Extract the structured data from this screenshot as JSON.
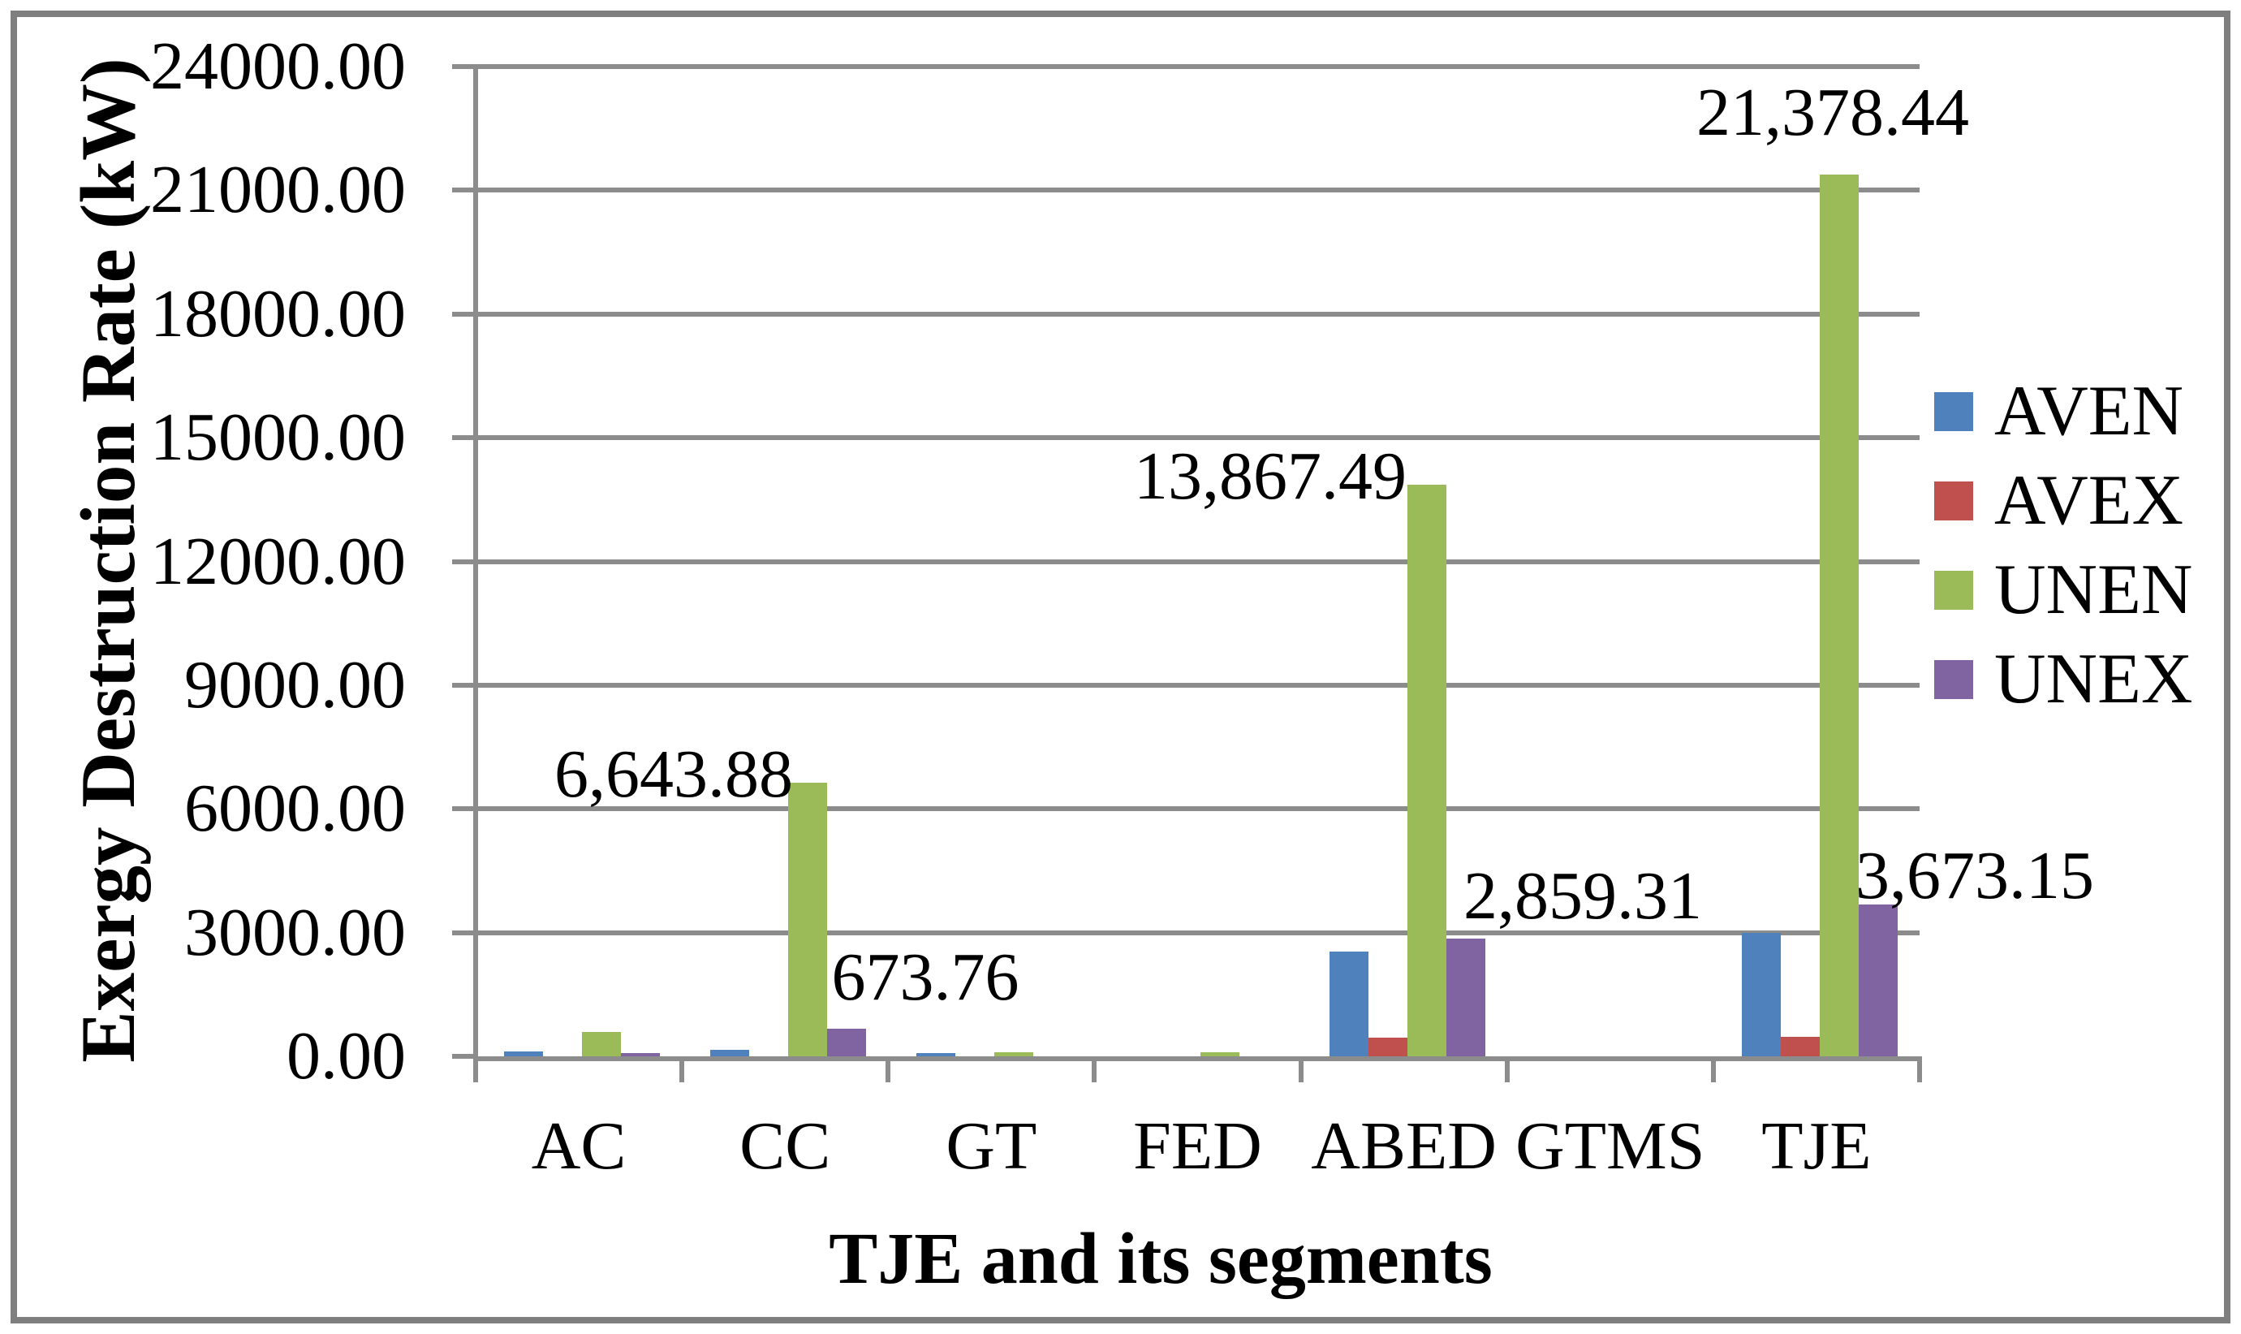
{
  "chart_data": {
    "type": "bar",
    "title": "",
    "xlabel": "TJE and its segments",
    "ylabel": "Exergy Destruction Rate (kW)",
    "categories": [
      "AC",
      "CC",
      "GT",
      "FED",
      "ABED",
      "GTMS",
      "TJE"
    ],
    "series": [
      {
        "name": "AVEN",
        "color": "#4F81BD",
        "values": [
          110,
          160,
          75,
          0,
          2530,
          0,
          3000
        ]
      },
      {
        "name": "AVEX",
        "color": "#C0504D",
        "values": [
          0,
          0,
          0,
          0,
          450,
          0,
          480
        ]
      },
      {
        "name": "UNEN",
        "color": "#9BBB59",
        "values": [
          590,
          6643.88,
          100,
          100,
          13867.49,
          0,
          21378.44
        ]
      },
      {
        "name": "UNEX",
        "color": "#8064A2",
        "values": [
          80,
          673.76,
          0,
          0,
          2859.31,
          0,
          3673.15
        ]
      }
    ],
    "ylim": [
      0,
      24000
    ],
    "ytick_step": 3000,
    "ytick_labels": [
      "0.00",
      "3000.00",
      "6000.00",
      "9000.00",
      "12000.00",
      "15000.00",
      "18000.00",
      "21000.00",
      "24000.00"
    ],
    "grid": true,
    "legend_position": "right",
    "data_labels": [
      {
        "category": "CC",
        "series": "UNEN",
        "text": "6,643.88"
      },
      {
        "category": "CC",
        "series": "UNEX",
        "text": "673.76"
      },
      {
        "category": "ABED",
        "series": "UNEN",
        "text": "13,867.49"
      },
      {
        "category": "ABED",
        "series": "UNEX",
        "text": "2,859.31"
      },
      {
        "category": "TJE",
        "series": "UNEN",
        "text": "21,378.44"
      },
      {
        "category": "TJE",
        "series": "UNEX",
        "text": "3,673.15"
      }
    ]
  },
  "colors": {
    "gridline": "#8c8c8c",
    "axis": "#8c8c8c",
    "frame": "#7f7f7f",
    "background": "#ffffff"
  }
}
